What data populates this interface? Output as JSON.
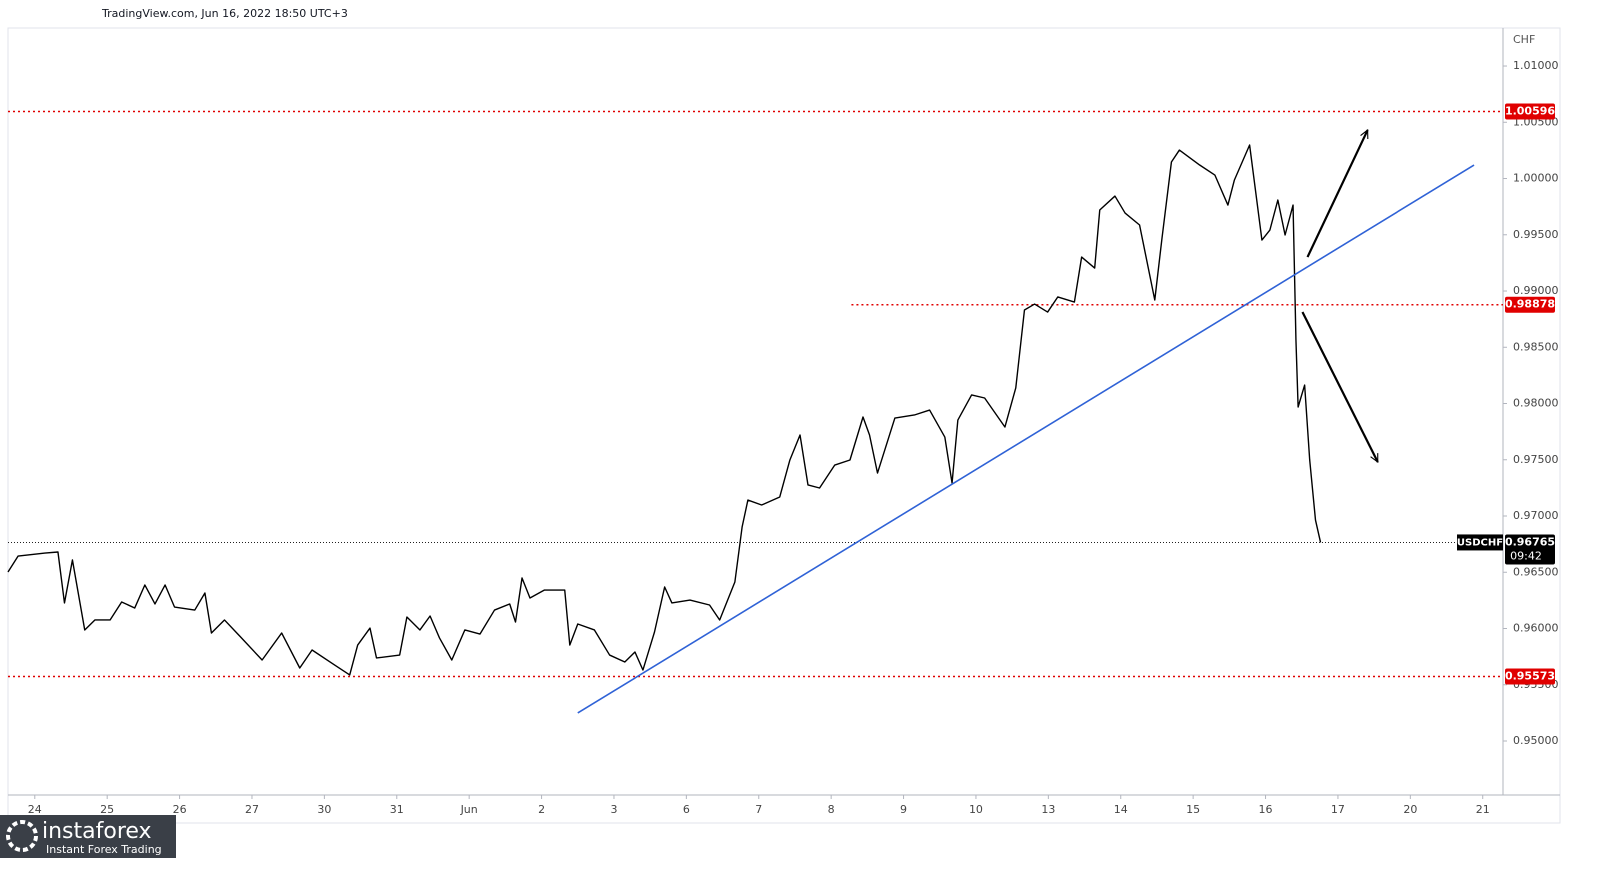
{
  "chart_data": {
    "type": "line",
    "source": "TradingView.com, Jun 16, 2022 18:50 UTC+3",
    "currency": "CHF",
    "watermark": {
      "brand": "instaforex",
      "tagline": "Instant Forex Trading"
    },
    "xlim": [
      -0.37,
      20.28
    ],
    "ylim": [
      0.9452,
      1.01338
    ],
    "grid": false,
    "xticks": [
      {
        "value": 0,
        "label": "24"
      },
      {
        "value": 1,
        "label": "25"
      },
      {
        "value": 2,
        "label": "26"
      },
      {
        "value": 3,
        "label": "27"
      },
      {
        "value": 4,
        "label": "30"
      },
      {
        "value": 5,
        "label": "31"
      },
      {
        "value": 6,
        "label": "Jun"
      },
      {
        "value": 7,
        "label": "2"
      },
      {
        "value": 8,
        "label": "3"
      },
      {
        "value": 9,
        "label": "6"
      },
      {
        "value": 10,
        "label": "7"
      },
      {
        "value": 11,
        "label": "8"
      },
      {
        "value": 12,
        "label": "9"
      },
      {
        "value": 13,
        "label": "10"
      },
      {
        "value": 14,
        "label": "13"
      },
      {
        "value": 15,
        "label": "14"
      },
      {
        "value": 16,
        "label": "15"
      },
      {
        "value": 17,
        "label": "16"
      },
      {
        "value": 18,
        "label": "17"
      },
      {
        "value": 19,
        "label": "20"
      },
      {
        "value": 20,
        "label": "21"
      }
    ],
    "yticks": [
      {
        "value": 0.95,
        "label": "0.95000"
      },
      {
        "value": 0.955,
        "label": "0.95500"
      },
      {
        "value": 0.96,
        "label": "0.96000"
      },
      {
        "value": 0.965,
        "label": "0.96500"
      },
      {
        "value": 0.97,
        "label": "0.97000"
      },
      {
        "value": 0.975,
        "label": "0.97500"
      },
      {
        "value": 0.98,
        "label": "0.98000"
      },
      {
        "value": 0.985,
        "label": "0.98500"
      },
      {
        "value": 0.99,
        "label": "0.99000"
      },
      {
        "value": 0.995,
        "label": "0.99500"
      },
      {
        "value": 1.0,
        "label": "1.00000"
      },
      {
        "value": 1.005,
        "label": "1.00500"
      },
      {
        "value": 1.01,
        "label": "1.01000"
      }
    ],
    "x": [
      -0.37,
      -0.23,
      0.14,
      0.32,
      0.41,
      0.52,
      0.69,
      0.83,
      1.04,
      1.2,
      1.38,
      1.52,
      1.66,
      1.8,
      1.93,
      2.21,
      2.35,
      2.44,
      2.62,
      2.83,
      3.14,
      3.41,
      3.66,
      3.83,
      4.14,
      4.35,
      4.46,
      4.63,
      4.72,
      5.04,
      5.14,
      5.32,
      5.46,
      5.59,
      5.76,
      5.94,
      6.15,
      6.35,
      6.56,
      6.64,
      6.73,
      6.84,
      7.04,
      7.32,
      7.39,
      7.5,
      7.73,
      7.94,
      8.15,
      8.29,
      8.4,
      8.56,
      8.7,
      8.8,
      9.05,
      9.32,
      9.46,
      9.67,
      9.77,
      9.85,
      10.04,
      10.29,
      10.43,
      10.57,
      10.68,
      10.84,
      11.05,
      11.26,
      11.44,
      11.53,
      11.64,
      11.88,
      12.15,
      12.36,
      12.57,
      12.67,
      12.75,
      12.94,
      13.12,
      13.4,
      13.55,
      13.67,
      13.81,
      13.99,
      14.13,
      14.36,
      14.46,
      14.64,
      14.71,
      14.92,
      15.06,
      15.26,
      15.47,
      15.57,
      15.7,
      15.81,
      16.09,
      16.3,
      16.48,
      16.57,
      16.78,
      16.95,
      17.06,
      17.17,
      17.27,
      17.38,
      17.42,
      17.45,
      17.54,
      17.61,
      17.69,
      17.76
    ],
    "series": [
      {
        "name": "USDCHF",
        "color": "#000000",
        "values": [
          0.96502,
          0.96644,
          0.96671,
          0.9668,
          0.96227,
          0.96609,
          0.95987,
          0.96076,
          0.96076,
          0.96236,
          0.96182,
          0.96387,
          0.96218,
          0.96387,
          0.96191,
          0.96164,
          0.96316,
          0.9596,
          0.96076,
          0.95933,
          0.9572,
          0.9596,
          0.95649,
          0.95809,
          0.95676,
          0.95587,
          0.95853,
          0.96004,
          0.95738,
          0.95764,
          0.96102,
          0.95987,
          0.96111,
          0.95916,
          0.9572,
          0.95987,
          0.95951,
          0.96164,
          0.96218,
          0.96058,
          0.96449,
          0.96271,
          0.96342,
          0.96342,
          0.95853,
          0.9604,
          0.95987,
          0.95764,
          0.95702,
          0.95791,
          0.95631,
          0.95969,
          0.96369,
          0.96227,
          0.96253,
          0.96209,
          0.96076,
          0.96413,
          0.96902,
          0.97142,
          0.97098,
          0.97169,
          0.97498,
          0.9772,
          0.97276,
          0.97249,
          0.97453,
          0.97498,
          0.9788,
          0.9772,
          0.97382,
          0.97871,
          0.97898,
          0.97942,
          0.97702,
          0.97293,
          0.97853,
          0.98076,
          0.98049,
          0.97791,
          0.98138,
          0.98831,
          0.98884,
          0.98813,
          0.98947,
          0.98902,
          0.99302,
          0.99204,
          0.9972,
          0.99844,
          0.99693,
          0.99587,
          0.9892,
          0.99471,
          1.00147,
          1.00253,
          1.0012,
          1.00031,
          0.99764,
          0.99987,
          1.00298,
          0.99453,
          0.99542,
          0.99809,
          0.99498,
          0.99764,
          0.98564,
          0.97969,
          0.98164,
          0.97498,
          0.96964,
          0.96765
        ]
      }
    ],
    "levels": [
      {
        "value": 1.00596,
        "color": "#e00000",
        "x_start": -0.37
      },
      {
        "value": 0.98878,
        "color": "#e00000",
        "x_start": 11.28
      },
      {
        "value": 0.95573,
        "color": "#e00000",
        "x_start": -0.37
      }
    ],
    "last": {
      "value": 0.96765,
      "countdown": "09:42",
      "color": "#000000"
    },
    "trendline": {
      "x": [
        7.5,
        19.88
      ],
      "values": [
        0.95249,
        1.0012
      ],
      "color": "#2f62d6"
    },
    "arrows": [
      {
        "x": [
          17.58,
          18.41
        ],
        "values": [
          0.99302,
          1.00431
        ],
        "color": "#000000"
      },
      {
        "x": [
          17.51,
          18.55
        ],
        "values": [
          0.98813,
          0.9748
        ],
        "color": "#000000"
      }
    ]
  }
}
